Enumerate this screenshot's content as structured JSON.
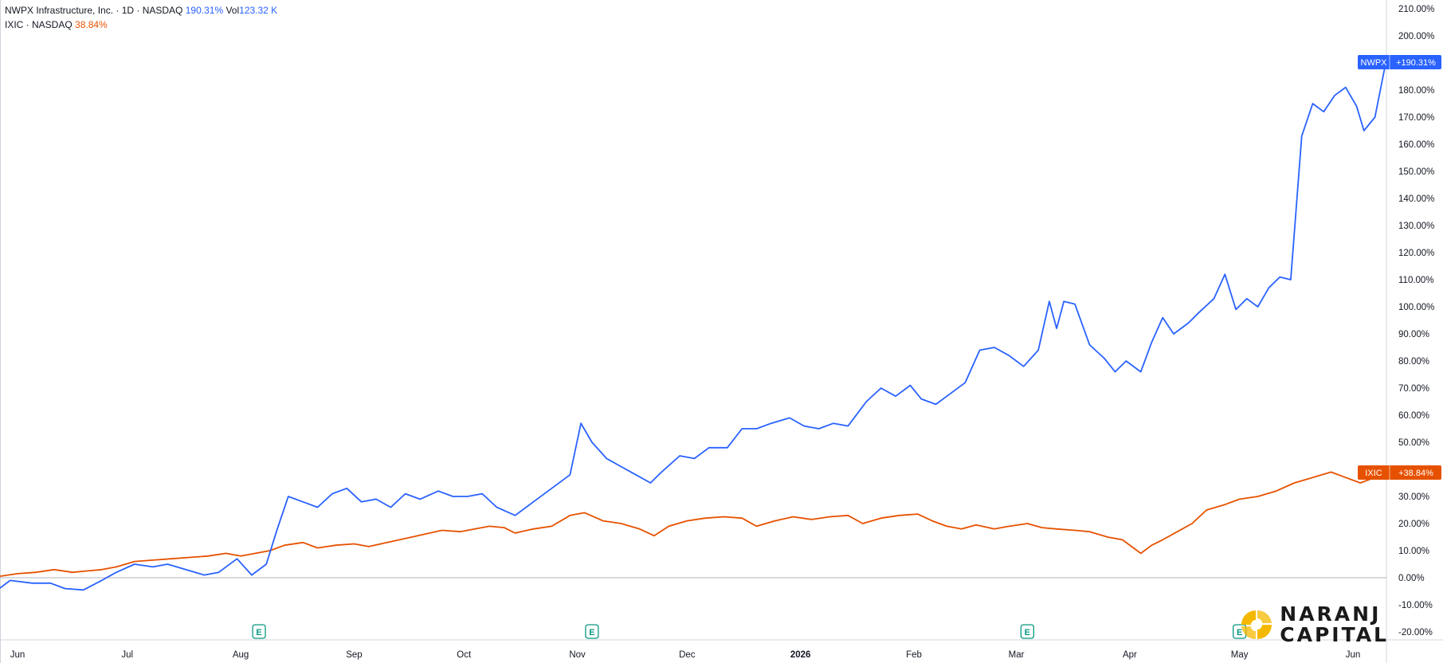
{
  "legend": {
    "series1_title": "NWPX Infrastructure, Inc. · 1D · NASDAQ",
    "series1_value": "190.31%",
    "volume_label": "Vol",
    "volume_value": "123.32 K",
    "series2_title": "IXIC · NASDAQ",
    "series2_value": "38.84%"
  },
  "badges": {
    "nwpx_name": "NWPX",
    "nwpx_value": "+190.31%",
    "ixic_name": "IXIC",
    "ixic_value": "+38.84%"
  },
  "earnings_marker": "E",
  "logo": {
    "line1": "NARANJ",
    "line2": "CAPITAL"
  },
  "colors": {
    "nwpx": "#2962ff",
    "ixic": "#e65100",
    "earnings": "#089981",
    "logo_accent": "#f5b800"
  },
  "chart_data": {
    "type": "line",
    "title": "",
    "xlabel": "",
    "ylabel": "",
    "ylim": [
      -22,
      212
    ],
    "y_unit": "%",
    "y_ticks": [
      -20,
      -10,
      0,
      10,
      20,
      30,
      40,
      50,
      60,
      70,
      80,
      90,
      100,
      110,
      120,
      130,
      140,
      150,
      160,
      170,
      180,
      190,
      200,
      210
    ],
    "x_ticks": [
      {
        "label": "Jun",
        "date": "2025-06-01"
      },
      {
        "label": "Jul",
        "date": "2025-07-01"
      },
      {
        "label": "Aug",
        "date": "2025-08-01"
      },
      {
        "label": "Sep",
        "date": "2025-09-01"
      },
      {
        "label": "Oct",
        "date": "2025-10-01"
      },
      {
        "label": "Nov",
        "date": "2025-11-01"
      },
      {
        "label": "Dec",
        "date": "2025-12-01"
      },
      {
        "label": "2026",
        "date": "2026-01-01",
        "bold": true
      },
      {
        "label": "Feb",
        "date": "2026-02-01"
      },
      {
        "label": "Mar",
        "date": "2026-03-01"
      },
      {
        "label": "Apr",
        "date": "2026-04-01"
      },
      {
        "label": "May",
        "date": "2026-05-01"
      },
      {
        "label": "Jun",
        "date": "2026-06-01"
      }
    ],
    "earnings_dates": [
      "2025-08-06",
      "2025-11-05",
      "2026-03-04",
      "2026-05-01"
    ],
    "series": [
      {
        "name": "NWPX",
        "points": [
          [
            "2025-05-22",
            -2
          ],
          [
            "2025-05-27",
            -4
          ],
          [
            "2025-05-30",
            -1
          ],
          [
            "2025-06-05",
            -2
          ],
          [
            "2025-06-10",
            -2
          ],
          [
            "2025-06-14",
            -4
          ],
          [
            "2025-06-19",
            -4.5
          ],
          [
            "2025-06-24",
            -1
          ],
          [
            "2025-06-28",
            2
          ],
          [
            "2025-07-03",
            5
          ],
          [
            "2025-07-08",
            4
          ],
          [
            "2025-07-12",
            5
          ],
          [
            "2025-07-17",
            3
          ],
          [
            "2025-07-22",
            1
          ],
          [
            "2025-07-26",
            2
          ],
          [
            "2025-07-31",
            7
          ],
          [
            "2025-08-04",
            1
          ],
          [
            "2025-08-08",
            5
          ],
          [
            "2025-08-11",
            18
          ],
          [
            "2025-08-14",
            30
          ],
          [
            "2025-08-18",
            28
          ],
          [
            "2025-08-22",
            26
          ],
          [
            "2025-08-26",
            31
          ],
          [
            "2025-08-30",
            33
          ],
          [
            "2025-09-03",
            28
          ],
          [
            "2025-09-07",
            29
          ],
          [
            "2025-09-11",
            26
          ],
          [
            "2025-09-15",
            31
          ],
          [
            "2025-09-19",
            29
          ],
          [
            "2025-09-24",
            32
          ],
          [
            "2025-09-28",
            30
          ],
          [
            "2025-10-02",
            30
          ],
          [
            "2025-10-06",
            31
          ],
          [
            "2025-10-10",
            26
          ],
          [
            "2025-10-15",
            23
          ],
          [
            "2025-10-20",
            28
          ],
          [
            "2025-10-25",
            33
          ],
          [
            "2025-10-30",
            38
          ],
          [
            "2025-11-02",
            57
          ],
          [
            "2025-11-05",
            50
          ],
          [
            "2025-11-09",
            44
          ],
          [
            "2025-11-13",
            41
          ],
          [
            "2025-11-17",
            38
          ],
          [
            "2025-11-21",
            35
          ],
          [
            "2025-11-24",
            39
          ],
          [
            "2025-11-29",
            45
          ],
          [
            "2025-12-03",
            44
          ],
          [
            "2025-12-07",
            48
          ],
          [
            "2025-12-12",
            48
          ],
          [
            "2025-12-16",
            55
          ],
          [
            "2025-12-20",
            55
          ],
          [
            "2025-12-24",
            57
          ],
          [
            "2025-12-29",
            59
          ],
          [
            "2026-01-02",
            56
          ],
          [
            "2026-01-06",
            55
          ],
          [
            "2026-01-10",
            57
          ],
          [
            "2026-01-14",
            56
          ],
          [
            "2026-01-19",
            65
          ],
          [
            "2026-01-23",
            70
          ],
          [
            "2026-01-27",
            67
          ],
          [
            "2026-01-31",
            71
          ],
          [
            "2026-02-03",
            66
          ],
          [
            "2026-02-07",
            64
          ],
          [
            "2026-02-11",
            68
          ],
          [
            "2026-02-15",
            72
          ],
          [
            "2026-02-19",
            84
          ],
          [
            "2026-02-23",
            85
          ],
          [
            "2026-02-27",
            82
          ],
          [
            "2026-03-03",
            78
          ],
          [
            "2026-03-07",
            84
          ],
          [
            "2026-03-10",
            102
          ],
          [
            "2026-03-12",
            92
          ],
          [
            "2026-03-14",
            102
          ],
          [
            "2026-03-17",
            101
          ],
          [
            "2026-03-21",
            86
          ],
          [
            "2026-03-25",
            81
          ],
          [
            "2026-03-28",
            76
          ],
          [
            "2026-03-31",
            80
          ],
          [
            "2026-04-04",
            76
          ],
          [
            "2026-04-07",
            87
          ],
          [
            "2026-04-10",
            96
          ],
          [
            "2026-04-13",
            90
          ],
          [
            "2026-04-17",
            94
          ],
          [
            "2026-04-20",
            98
          ],
          [
            "2026-04-24",
            103
          ],
          [
            "2026-04-27",
            112
          ],
          [
            "2026-04-30",
            99
          ],
          [
            "2026-05-03",
            103
          ],
          [
            "2026-05-06",
            100
          ],
          [
            "2026-05-09",
            107
          ],
          [
            "2026-05-12",
            111
          ],
          [
            "2026-05-15",
            110
          ],
          [
            "2026-05-18",
            163
          ],
          [
            "2026-05-21",
            175
          ],
          [
            "2026-05-24",
            172
          ],
          [
            "2026-05-27",
            178
          ],
          [
            "2026-05-30",
            181
          ],
          [
            "2026-06-02",
            174
          ],
          [
            "2026-06-04",
            165
          ],
          [
            "2026-06-07",
            170
          ],
          [
            "2026-06-10",
            190.31
          ]
        ]
      },
      {
        "name": "IXIC",
        "points": [
          [
            "2025-05-22",
            0
          ],
          [
            "2025-05-27",
            0.5
          ],
          [
            "2025-06-01",
            1.5
          ],
          [
            "2025-06-06",
            2
          ],
          [
            "2025-06-11",
            3
          ],
          [
            "2025-06-16",
            2
          ],
          [
            "2025-06-20",
            2.5
          ],
          [
            "2025-06-24",
            3
          ],
          [
            "2025-06-28",
            4
          ],
          [
            "2025-07-03",
            6
          ],
          [
            "2025-07-08",
            6.5
          ],
          [
            "2025-07-13",
            7
          ],
          [
            "2025-07-18",
            7.5
          ],
          [
            "2025-07-23",
            8
          ],
          [
            "2025-07-28",
            9
          ],
          [
            "2025-08-01",
            8
          ],
          [
            "2025-08-05",
            9
          ],
          [
            "2025-08-09",
            10
          ],
          [
            "2025-08-13",
            12
          ],
          [
            "2025-08-18",
            13
          ],
          [
            "2025-08-22",
            11
          ],
          [
            "2025-08-27",
            12
          ],
          [
            "2025-09-01",
            12.5
          ],
          [
            "2025-09-05",
            11.5
          ],
          [
            "2025-09-10",
            13
          ],
          [
            "2025-09-15",
            14.5
          ],
          [
            "2025-09-20",
            16
          ],
          [
            "2025-09-25",
            17.5
          ],
          [
            "2025-09-30",
            17
          ],
          [
            "2025-10-04",
            18
          ],
          [
            "2025-10-08",
            19
          ],
          [
            "2025-10-12",
            18.5
          ],
          [
            "2025-10-15",
            16.5
          ],
          [
            "2025-10-20",
            18
          ],
          [
            "2025-10-25",
            19
          ],
          [
            "2025-10-30",
            23
          ],
          [
            "2025-11-03",
            24
          ],
          [
            "2025-11-08",
            21
          ],
          [
            "2025-11-13",
            20
          ],
          [
            "2025-11-18",
            18
          ],
          [
            "2025-11-22",
            15.5
          ],
          [
            "2025-11-26",
            19
          ],
          [
            "2025-12-01",
            21
          ],
          [
            "2025-12-06",
            22
          ],
          [
            "2025-12-11",
            22.5
          ],
          [
            "2025-12-16",
            22
          ],
          [
            "2025-12-20",
            19
          ],
          [
            "2025-12-25",
            21
          ],
          [
            "2025-12-30",
            22.5
          ],
          [
            "2026-01-04",
            21.5
          ],
          [
            "2026-01-09",
            22.5
          ],
          [
            "2026-01-14",
            23
          ],
          [
            "2026-01-18",
            20
          ],
          [
            "2026-01-23",
            22
          ],
          [
            "2026-01-28",
            23
          ],
          [
            "2026-02-02",
            23.5
          ],
          [
            "2026-02-06",
            21
          ],
          [
            "2026-02-10",
            19
          ],
          [
            "2026-02-14",
            18
          ],
          [
            "2026-02-18",
            19.5
          ],
          [
            "2026-02-23",
            18
          ],
          [
            "2026-02-27",
            19
          ],
          [
            "2026-03-04",
            20
          ],
          [
            "2026-03-08",
            18.5
          ],
          [
            "2026-03-12",
            18
          ],
          [
            "2026-03-17",
            17.5
          ],
          [
            "2026-03-21",
            17
          ],
          [
            "2026-03-26",
            15
          ],
          [
            "2026-03-30",
            14
          ],
          [
            "2026-04-04",
            9
          ],
          [
            "2026-04-07",
            12
          ],
          [
            "2026-04-10",
            14
          ],
          [
            "2026-04-14",
            17
          ],
          [
            "2026-04-18",
            20
          ],
          [
            "2026-04-22",
            25
          ],
          [
            "2026-04-27",
            27
          ],
          [
            "2026-05-01",
            29
          ],
          [
            "2026-05-06",
            30
          ],
          [
            "2026-05-11",
            32
          ],
          [
            "2026-05-16",
            35
          ],
          [
            "2026-05-21",
            37
          ],
          [
            "2026-05-26",
            39
          ],
          [
            "2026-05-30",
            37
          ],
          [
            "2026-06-03",
            35
          ],
          [
            "2026-06-07",
            37
          ],
          [
            "2026-06-10",
            38.84
          ]
        ]
      }
    ]
  }
}
